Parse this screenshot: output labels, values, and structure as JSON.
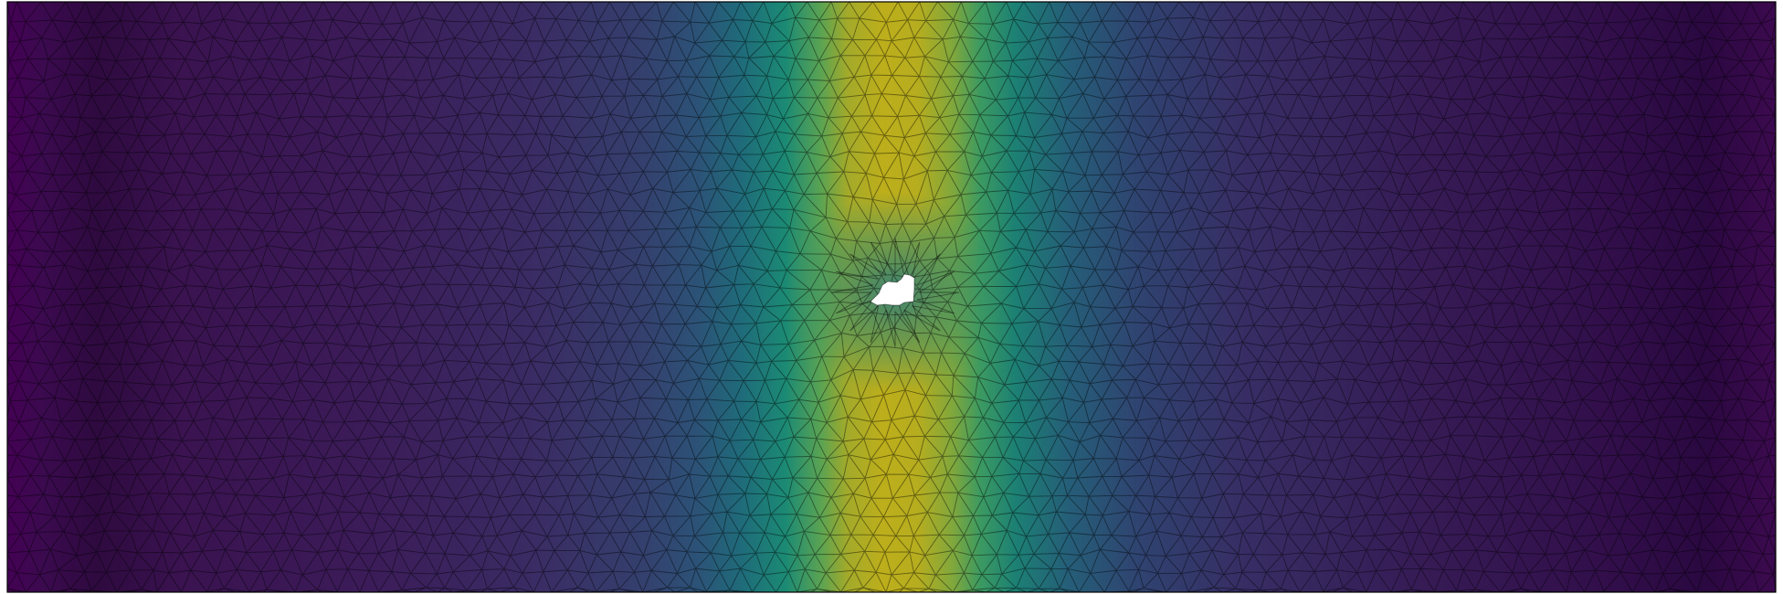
{
  "figure": {
    "kind": "finite-element mesh field plot",
    "colormap": "viridis",
    "colormap_stops": [
      "#440154",
      "#482878",
      "#3e4989",
      "#31688e",
      "#26828e",
      "#1f9e89",
      "#35b779",
      "#6ece58",
      "#b5de2b",
      "#fde725"
    ],
    "mesh_edge_color": "#000000",
    "frame_color": "#000000",
    "background_color": "#ffffff",
    "hole_color": "#ffffff",
    "title": "",
    "xlabel": "",
    "ylabel": "",
    "colorbar": false,
    "field_profile": {
      "description_shape": "gaussian band across x with dip near the central hole",
      "peak_value_fraction": 0.78,
      "left_edge_value_fraction": 0.0,
      "right_edge_value_fraction": 0.0
    }
  }
}
